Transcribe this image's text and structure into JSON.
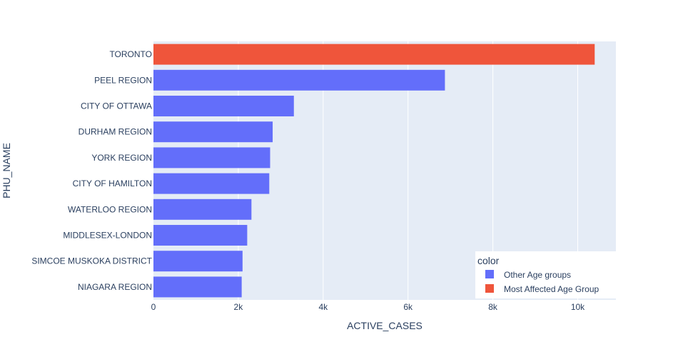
{
  "chart_data": {
    "type": "bar",
    "orientation": "horizontal",
    "title": "",
    "xlabel": "ACTIVE_CASES",
    "ylabel": "PHU_NAME",
    "xlim": [
      0,
      10900
    ],
    "xticks": [
      0,
      2000,
      4000,
      6000,
      8000,
      10000
    ],
    "xtick_labels": [
      "0",
      "2k",
      "4k",
      "6k",
      "8k",
      "10k"
    ],
    "grid": true,
    "categories": [
      "TORONTO",
      "PEEL REGION",
      "CITY OF OTTAWA",
      "DURHAM REGION",
      "YORK REGION",
      "CITY OF HAMILTON",
      "WATERLOO REGION",
      "MIDDLESEX-LONDON",
      "SIMCOE MUSKOKA DISTRICT",
      "NIAGARA REGION"
    ],
    "values": [
      10400,
      6870,
      3310,
      2810,
      2750,
      2730,
      2310,
      2210,
      2100,
      2080
    ],
    "groups": [
      "Most Affected Age Group",
      "Other Age groups",
      "Other Age groups",
      "Other Age groups",
      "Other Age groups",
      "Other Age groups",
      "Other Age groups",
      "Other Age groups",
      "Other Age groups",
      "Other Age groups"
    ],
    "legend": {
      "title": "color",
      "placement": "bottom-right",
      "items": [
        {
          "label": "Other Age groups",
          "color": "#636efa"
        },
        {
          "label": "Most Affected Age Group",
          "color": "#ef553b"
        }
      ]
    },
    "colors": {
      "plot_background": "#e5ecf6",
      "grid": "#ffffff",
      "text": "#2a3f5f"
    }
  }
}
